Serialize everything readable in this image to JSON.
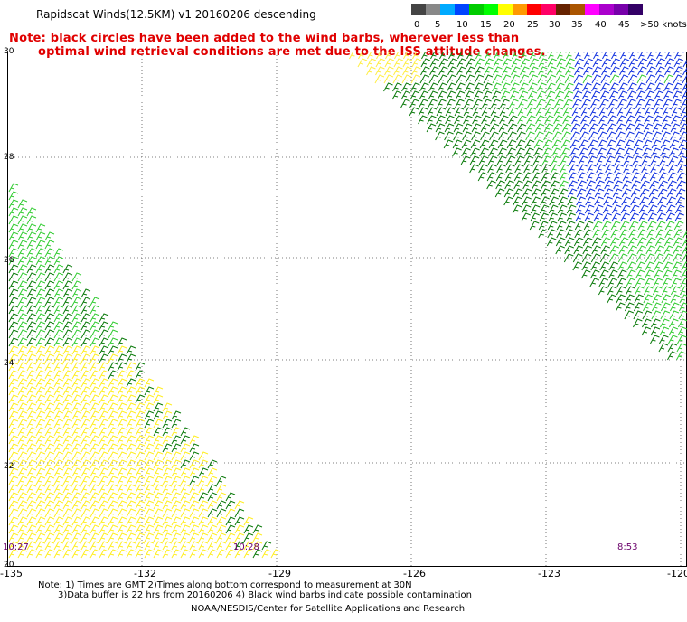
{
  "title": "Rapidscat Winds(12.5KM) v1 20160206 descending",
  "note": {
    "line1": "Note: black circles have been added to the wind barbs, wherever less than",
    "line2": "optimal wind retrieval conditions are met due to the ISS attitude changes."
  },
  "colorbar": {
    "colors": [
      "#444444",
      "#888888",
      "#00aaff",
      "#0044ff",
      "#00cc00",
      "#00ff00",
      "#ffff00",
      "#ff9900",
      "#ff0000",
      "#ff0066",
      "#662200",
      "#aa5500",
      "#ff00ff",
      "#aa00cc",
      "#7700aa",
      "#330066"
    ],
    "labels": [
      "0",
      "5",
      "10",
      "15",
      "20",
      "25",
      "30",
      "35",
      "40",
      "45",
      ">50 knots"
    ]
  },
  "y_ticks": [
    "30",
    "28",
    "26",
    "24",
    "22",
    "20"
  ],
  "x_ticks": [
    "-135",
    "-132",
    "-129",
    "-126",
    "-123",
    "-120"
  ],
  "times": [
    "10:27",
    "10:28",
    "8:53"
  ],
  "footer": {
    "line1": "Note: 1) Times are GMT 2)Times along bottom correspond to measurement at 30N",
    "line2": "3)Data buffer is 22 hrs from 20160206 4) Black wind barbs indicate possible contamination",
    "line3": "NOAA/NESDIS/Center for Satellite Applications and Research"
  }
}
